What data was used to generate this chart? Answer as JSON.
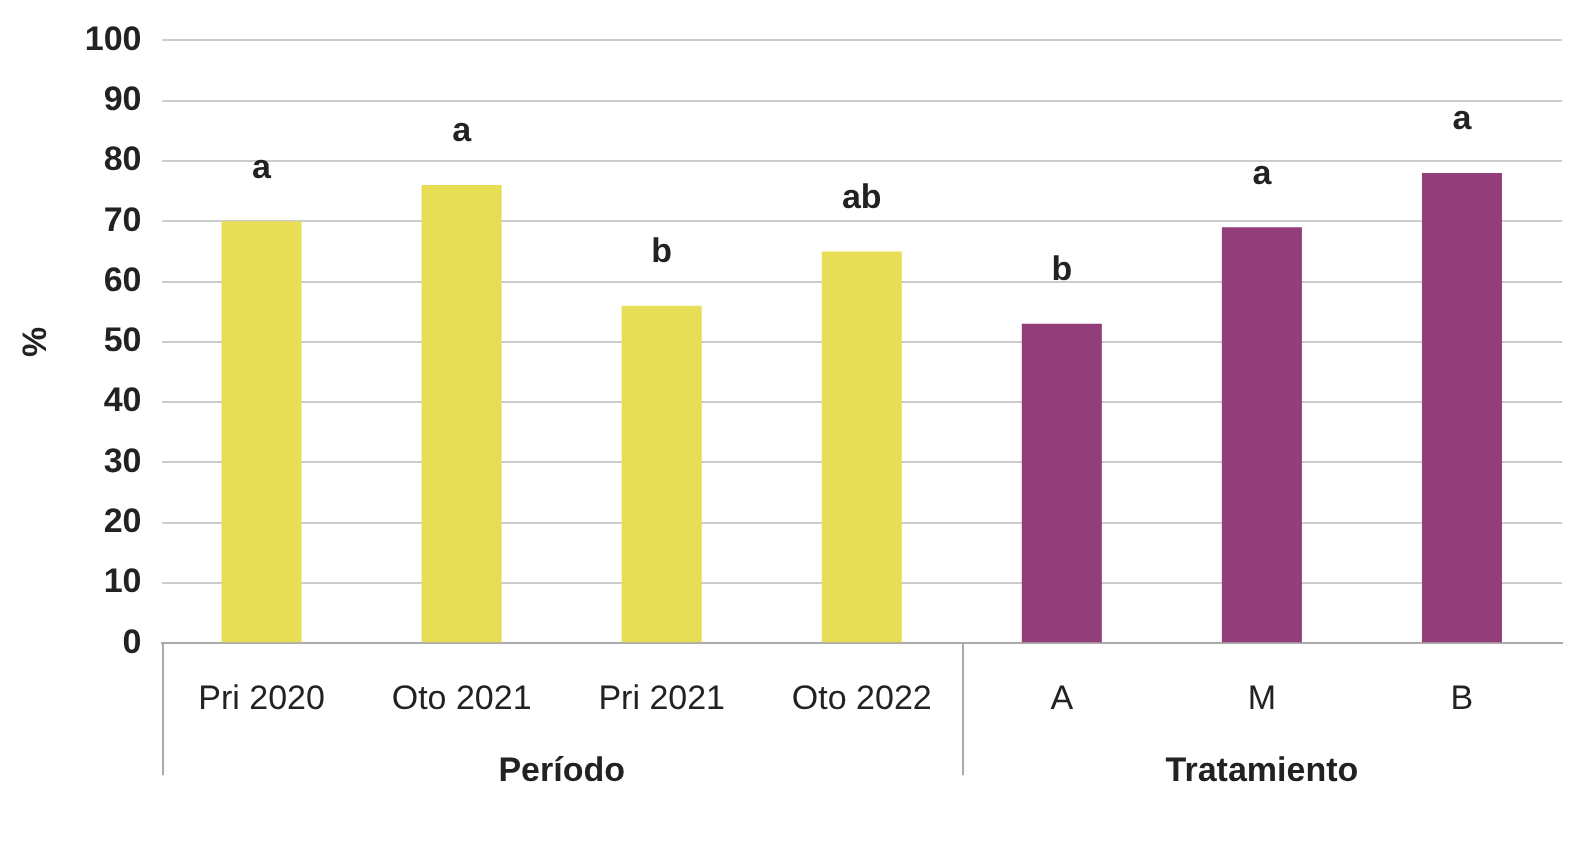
{
  "chart_data": {
    "type": "bar",
    "ylabel": "%",
    "categories": [
      "Pri 2020",
      "Oto 2021",
      "Pri 2021",
      "Oto 2022",
      "A",
      "M",
      "B"
    ],
    "series": [
      {
        "color": "#e8de55",
        "values": [
          70,
          76,
          56,
          65,
          null,
          null,
          null
        ]
      },
      {
        "color": "#933e7a",
        "values": [
          null,
          null,
          null,
          null,
          53,
          69,
          78
        ]
      }
    ],
    "ylim": [
      0,
      100
    ],
    "yticks": [
      0,
      10,
      20,
      30,
      40,
      50,
      60,
      70,
      80,
      90,
      100
    ],
    "grid": "y",
    "legend": false,
    "annotations": [
      {
        "text": "a",
        "x": "Pri 2020",
        "y": 70
      },
      {
        "text": "a",
        "x": "Oto 2021",
        "y": 76
      },
      {
        "text": "b",
        "x": "Pri 2021",
        "y": 56
      },
      {
        "text": "ab",
        "x": "Oto 2022",
        "y": 65
      },
      {
        "text": "b",
        "x": "A",
        "y": 53
      },
      {
        "text": "a",
        "x": "M",
        "y": 69
      },
      {
        "text": "a",
        "x": "B",
        "y": 78
      },
      "Período",
      "Tratamiento"
    ]
  }
}
